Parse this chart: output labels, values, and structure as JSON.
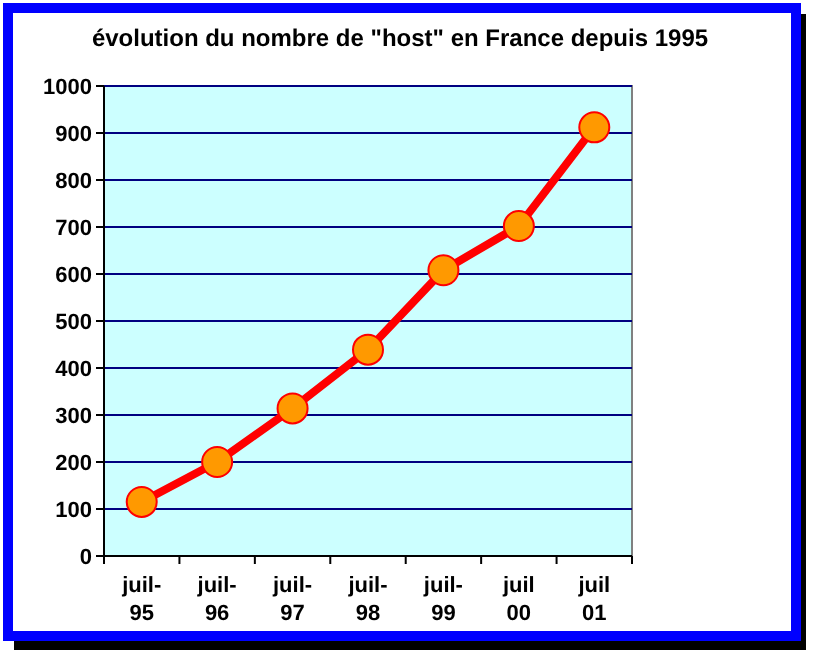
{
  "chart_data": {
    "type": "line",
    "title": "évolution du nombre de \"host\" en France depuis 1995",
    "categories": [
      "juil-95",
      "juil-96",
      "juil-97",
      "juil-98",
      "juil-99",
      "juil 00",
      "juil 01"
    ],
    "series": [
      {
        "color": "#ff0000",
        "values": [
          115,
          200,
          314,
          439,
          608,
          702,
          912
        ]
      }
    ],
    "ylim": [
      0,
      1000
    ],
    "yticks": [
      0,
      100,
      200,
      300,
      400,
      500,
      600,
      700,
      800,
      900,
      1000
    ],
    "grid": "y",
    "marker": "circle",
    "line_style": "solid"
  }
}
